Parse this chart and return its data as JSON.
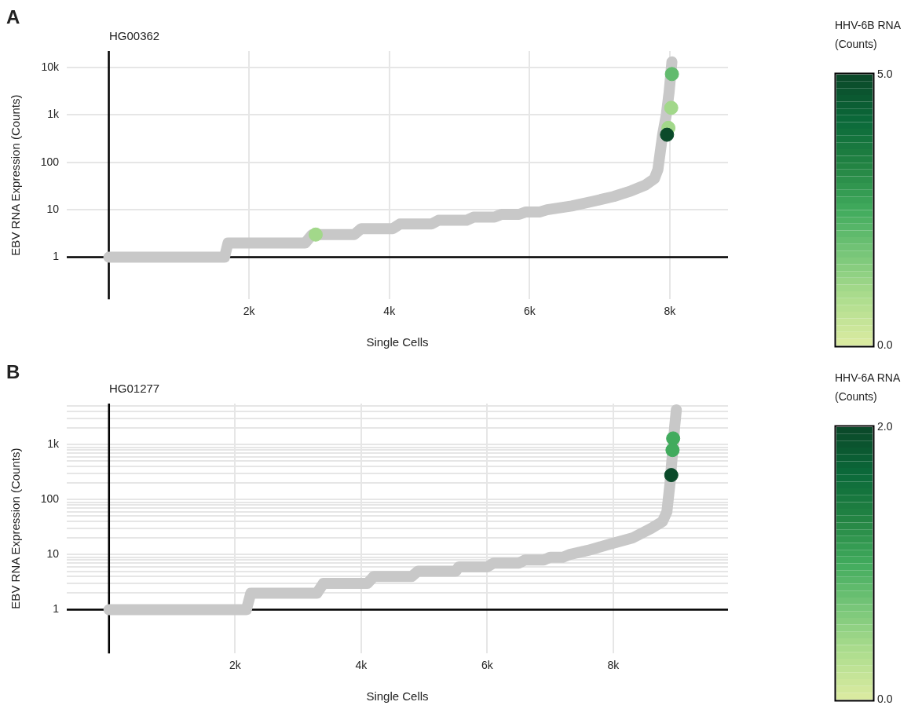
{
  "chart_data": [
    {
      "type": "scatter",
      "title": "HG00362",
      "annotations": [
        "A"
      ],
      "xlabel": "Single Cells",
      "ylabel": "EBV RNA Expression (Counts)",
      "clabel": "HHV-6B RNA (Counts)",
      "log": "y",
      "grid": true,
      "xlim": [
        -600,
        8830
      ],
      "xticks": [
        {
          "value": 2000,
          "label": "2k"
        },
        {
          "value": 4000,
          "label": "4k"
        },
        {
          "value": 6000,
          "label": "6k"
        },
        {
          "value": 8000,
          "label": "8k"
        }
      ],
      "ylim": [
        0.13,
        22000
      ],
      "yticks": [
        1,
        10,
        100,
        {
          "value": 1000,
          "label": "1k"
        },
        {
          "value": 10000,
          "label": "10k"
        }
      ],
      "clim": [
        0,
        5
      ],
      "cticks": [
        {
          "value": 0,
          "label": "0.0"
        },
        {
          "value": 5,
          "label": "5.0"
        }
      ],
      "ref_lines": [
        {
          "axis": "x",
          "value": 0,
          "color": "#000000"
        },
        {
          "axis": "y",
          "value": 1,
          "color": "#000000"
        }
      ],
      "series": [
        {
          "type": "line",
          "color": "#c8c8c8",
          "marker": "none",
          "x": [
            0,
            1650,
            1700,
            2800,
            2900,
            3500,
            3600,
            4050,
            4150,
            4600,
            4700,
            5100,
            5200,
            5500,
            5600,
            5850,
            5950,
            6150,
            6250,
            6600,
            6900,
            7200,
            7450,
            7650,
            7780,
            7830,
            7860,
            7900,
            7950,
            7990,
            8030
          ],
          "values": [
            1,
            1,
            2,
            2,
            3,
            3,
            4,
            4,
            5,
            5,
            6,
            6,
            7,
            7,
            8,
            8,
            9,
            9,
            10,
            12,
            15,
            19,
            25,
            33,
            45,
            70,
            150,
            400,
            1000,
            3000,
            13000
          ]
        },
        {
          "type": "scatter",
          "marker": "circle",
          "x": [
            2950,
            8030,
            8020,
            7980,
            7960
          ],
          "values": [
            3,
            7200,
            1400,
            530,
            380
          ],
          "cvalues": [
            1,
            2,
            1,
            1,
            5
          ],
          "colors": [
            "#a2d88a",
            "#62bb6e",
            "#a2d88a",
            "#a2d88a",
            "#0b4a2a"
          ]
        }
      ]
    },
    {
      "type": "scatter",
      "title": "HG01277",
      "annotations": [
        "B"
      ],
      "xlabel": "Single Cells",
      "ylabel": "EBV RNA Expression (Counts)",
      "clabel": "HHV-6A RNA (Counts)",
      "log": "y",
      "grid": true,
      "xlim": [
        -670,
        9820
      ],
      "xticks": [
        {
          "value": 2000,
          "label": "2k"
        },
        {
          "value": 4000,
          "label": "4k"
        },
        {
          "value": 6000,
          "label": "6k"
        },
        {
          "value": 8000,
          "label": "8k"
        }
      ],
      "ylim": [
        0.16,
        5600
      ],
      "yticks": [
        1,
        {
          "value": 2,
          "label": null
        },
        {
          "value": 3,
          "label": null
        },
        {
          "value": 4,
          "label": null
        },
        {
          "value": 5,
          "label": null
        },
        {
          "value": 6,
          "label": null
        },
        {
          "value": 7,
          "label": null
        },
        {
          "value": 8,
          "label": null
        },
        {
          "value": 9,
          "label": null
        },
        10,
        {
          "value": 20,
          "label": null
        },
        {
          "value": 30,
          "label": null
        },
        {
          "value": 40,
          "label": null
        },
        {
          "value": 50,
          "label": null
        },
        {
          "value": 60,
          "label": null
        },
        {
          "value": 70,
          "label": null
        },
        {
          "value": 80,
          "label": null
        },
        {
          "value": 90,
          "label": null
        },
        100,
        {
          "value": 200,
          "label": null
        },
        {
          "value": 300,
          "label": null
        },
        {
          "value": 400,
          "label": null
        },
        {
          "value": 500,
          "label": null
        },
        {
          "value": 600,
          "label": null
        },
        {
          "value": 700,
          "label": null
        },
        {
          "value": 800,
          "label": null
        },
        {
          "value": 900,
          "label": null
        },
        {
          "value": 1000,
          "label": "1k"
        },
        {
          "value": 2000,
          "label": null
        },
        {
          "value": 3000,
          "label": null
        },
        {
          "value": 4000,
          "label": null
        },
        {
          "value": 5000,
          "label": null
        }
      ],
      "clim": [
        0,
        2
      ],
      "cticks": [
        {
          "value": 0,
          "label": "0.0"
        },
        {
          "value": 2,
          "label": "2.0"
        }
      ],
      "ref_lines": [
        {
          "axis": "x",
          "value": 0,
          "color": "#000000"
        },
        {
          "axis": "y",
          "value": 1,
          "color": "#000000"
        }
      ],
      "series": [
        {
          "type": "line",
          "color": "#c8c8c8",
          "marker": "none",
          "x": [
            0,
            2180,
            2250,
            3300,
            3400,
            4100,
            4200,
            4800,
            4900,
            5500,
            5550,
            6000,
            6100,
            6500,
            6600,
            6900,
            7000,
            7200,
            7300,
            7600,
            7900,
            8300,
            8600,
            8780,
            8850,
            8900,
            8975,
            9000
          ],
          "values": [
            1,
            1,
            2,
            2,
            3,
            3,
            4,
            4,
            5,
            5,
            6,
            6,
            7,
            7,
            8,
            8,
            9,
            9,
            10,
            12,
            15,
            20,
            30,
            40,
            60,
            200,
            2200,
            4300
          ]
        },
        {
          "type": "scatter",
          "marker": "circle",
          "x": [
            8950,
            8940,
            8920
          ],
          "values": [
            1300,
            800,
            280
          ],
          "cvalues": [
            1,
            1,
            2
          ],
          "colors": [
            "#41ab5d",
            "#41ab5d",
            "#0b4a2a"
          ]
        }
      ]
    }
  ]
}
